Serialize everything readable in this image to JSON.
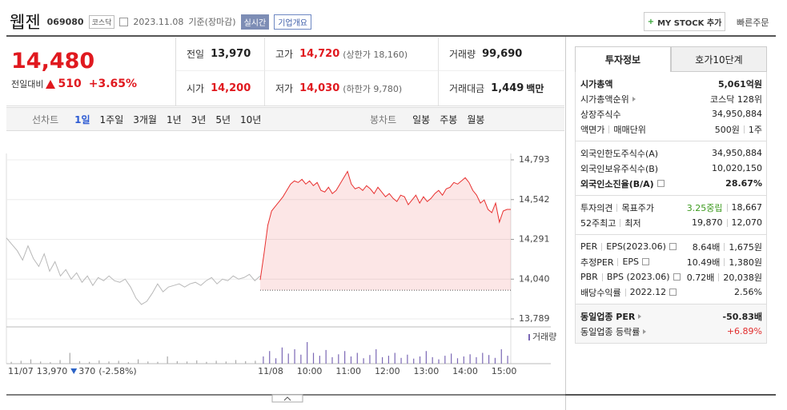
{
  "header": {
    "name": "웹젠",
    "code": "069080",
    "market": "코스닥",
    "date": "2023.11.08",
    "basis": "기준(장마감)",
    "realtime": "실시간",
    "overview": "기업개요",
    "mystock": "MY STOCK 추가",
    "quick_order": "빠른주문"
  },
  "quote": {
    "price": "14,480",
    "change_label": "전일대비",
    "change": "510",
    "change_pct": "+3.65%"
  },
  "summary": [
    {
      "label": "전일",
      "value": "13,970"
    },
    {
      "label": "고가",
      "value": "14,720",
      "note": "(상한가 18,160)",
      "color": "#e0191f"
    },
    {
      "label": "거래량",
      "value": "99,690"
    },
    {
      "label": "시가",
      "value": "14,200",
      "color": "#e0191f"
    },
    {
      "label": "저가",
      "value": "14,030",
      "note": "(하한가 9,780)",
      "color": "#e0191f"
    },
    {
      "label": "거래대금",
      "value": "1,449",
      "unit": "백만"
    }
  ],
  "tabs": {
    "line_label": "선차트",
    "line": [
      "1일",
      "1주일",
      "3개월",
      "1년",
      "3년",
      "5년",
      "10년"
    ],
    "candle_label": "봉차트",
    "candle": [
      "일봉",
      "주봉",
      "월봉"
    ]
  },
  "chart_data": {
    "type": "line",
    "ylim": [
      13789,
      14793
    ],
    "yticks": [
      {
        "value": 14793,
        "label": "14,793"
      },
      {
        "value": 14542,
        "label": "14,542"
      },
      {
        "value": 14291,
        "label": "14,291"
      },
      {
        "value": 14040,
        "label": "14,040"
      },
      {
        "value": 13789,
        "label": "13,789"
      }
    ],
    "reference_line": 13970,
    "xticks": [
      "11/08",
      "10:00",
      "11:00",
      "12:00",
      "13:00",
      "14:00",
      "15:00"
    ],
    "series": [
      {
        "color": "#b8b8b8",
        "values": [
          14300,
          14260,
          14220,
          14160,
          14250,
          14170,
          14120,
          14200,
          14090,
          14150,
          14060,
          14100,
          14040,
          14080,
          14020,
          14060,
          14000,
          14050,
          14030,
          14060,
          14030,
          14020,
          14040,
          13990,
          13920,
          13880,
          13900,
          13950,
          14010,
          13960,
          13990,
          14000,
          14010,
          13990,
          14010,
          14020,
          14000,
          14030,
          14050,
          14010,
          14040,
          14030,
          14060,
          14040,
          14050,
          14070,
          14030,
          14060
        ]
      },
      {
        "color": "#e8302f",
        "values": [
          14035,
          14200,
          14380,
          14470,
          14500,
          14530,
          14560,
          14600,
          14640,
          14660,
          14650,
          14670,
          14640,
          14660,
          14630,
          14650,
          14600,
          14590,
          14620,
          14580,
          14600,
          14640,
          14680,
          14720,
          14640,
          14610,
          14620,
          14600,
          14630,
          14610,
          14580,
          14620,
          14590,
          14560,
          14580,
          14550,
          14530,
          14570,
          14560,
          14510,
          14540,
          14570,
          14520,
          14560,
          14530,
          14550,
          14580,
          14600,
          14570,
          14610,
          14620,
          14650,
          14640,
          14660,
          14680,
          14650,
          14600,
          14570,
          14520,
          14540,
          14480,
          14460,
          14520,
          14400,
          14470,
          14480,
          14480
        ]
      }
    ],
    "volume": {
      "label": "거래량",
      "ylim": [
        0,
        100
      ],
      "series": [
        {
          "color": "#aaaaaa",
          "values": [
            5,
            8,
            12,
            6,
            4,
            10,
            30,
            7,
            5,
            9,
            6,
            8,
            4,
            12,
            6,
            5,
            20,
            7,
            6,
            9,
            5,
            8,
            6,
            10,
            7,
            8
          ]
        },
        {
          "color": "#7b68b5",
          "values": [
            20,
            35,
            15,
            45,
            28,
            40,
            25,
            60,
            30,
            22,
            38,
            18,
            26,
            35,
            20,
            30,
            15,
            24,
            40,
            18,
            22,
            30,
            16,
            25,
            14,
            20,
            35,
            18,
            12,
            22,
            28,
            15,
            20,
            26,
            18,
            30,
            24,
            16,
            40,
            22
          ]
        }
      ]
    }
  },
  "prev_day": {
    "date": "11/07",
    "close": "13,970",
    "change": "370",
    "change_pct": "(-2.58%)"
  },
  "invest": {
    "tabs": [
      "투자정보",
      "호가10단계"
    ],
    "sections": [
      {
        "rows": [
          {
            "label": [
              "시가총액"
            ],
            "value": [
              "5,061억원"
            ],
            "bold": true
          },
          {
            "label": [
              "시가총액순위"
            ],
            "arrow": true,
            "value": [
              "코스닥 128위"
            ]
          },
          {
            "label": [
              "상장주식수"
            ],
            "value": [
              "34,950,884"
            ]
          },
          {
            "label": [
              "액면가",
              "매매단위"
            ],
            "value": [
              "500원",
              "1주"
            ]
          }
        ]
      },
      {
        "rows": [
          {
            "label": [
              "외국인한도주식수(A)"
            ],
            "value": [
              "34,950,884"
            ]
          },
          {
            "label": [
              "외국인보유주식수(B)"
            ],
            "value": [
              "10,020,150"
            ]
          },
          {
            "label": [
              "외국인소진율(B/A)"
            ],
            "help": true,
            "value": [
              "28.67%"
            ],
            "bold": true
          }
        ]
      },
      {
        "rows": [
          {
            "label": [
              "투자의견",
              "목표주가"
            ],
            "value": [
              {
                "text": "3.25중립",
                "color": "#3c9a1e"
              },
              "18,667"
            ]
          },
          {
            "label": [
              "52주최고",
              "최저"
            ],
            "value": [
              "19,870",
              "12,070"
            ]
          }
        ]
      },
      {
        "rows": [
          {
            "label": [
              "PER",
              "EPS(2023.06)"
            ],
            "help": true,
            "value": [
              "8.64배",
              "1,675원"
            ]
          },
          {
            "label": [
              "추정PER",
              "EPS"
            ],
            "help": true,
            "value": [
              "10.49배",
              "1,380원"
            ]
          },
          {
            "label": [
              "PBR",
              "BPS (2023.06)"
            ],
            "help": true,
            "value": [
              "0.72배",
              "20,038원"
            ]
          },
          {
            "label": [
              "배당수익률",
              "2022.12"
            ],
            "help": true,
            "value": [
              "2.56%"
            ]
          }
        ]
      },
      {
        "rows": [
          {
            "label": [
              "동일업종 PER"
            ],
            "arrow": true,
            "value": [
              "-50.83배"
            ],
            "bold": true
          },
          {
            "label": [
              "동일업종 등락률"
            ],
            "arrow": true,
            "value": [
              {
                "text": "+6.89%",
                "color": "#e12d2d"
              }
            ]
          }
        ]
      }
    ]
  }
}
